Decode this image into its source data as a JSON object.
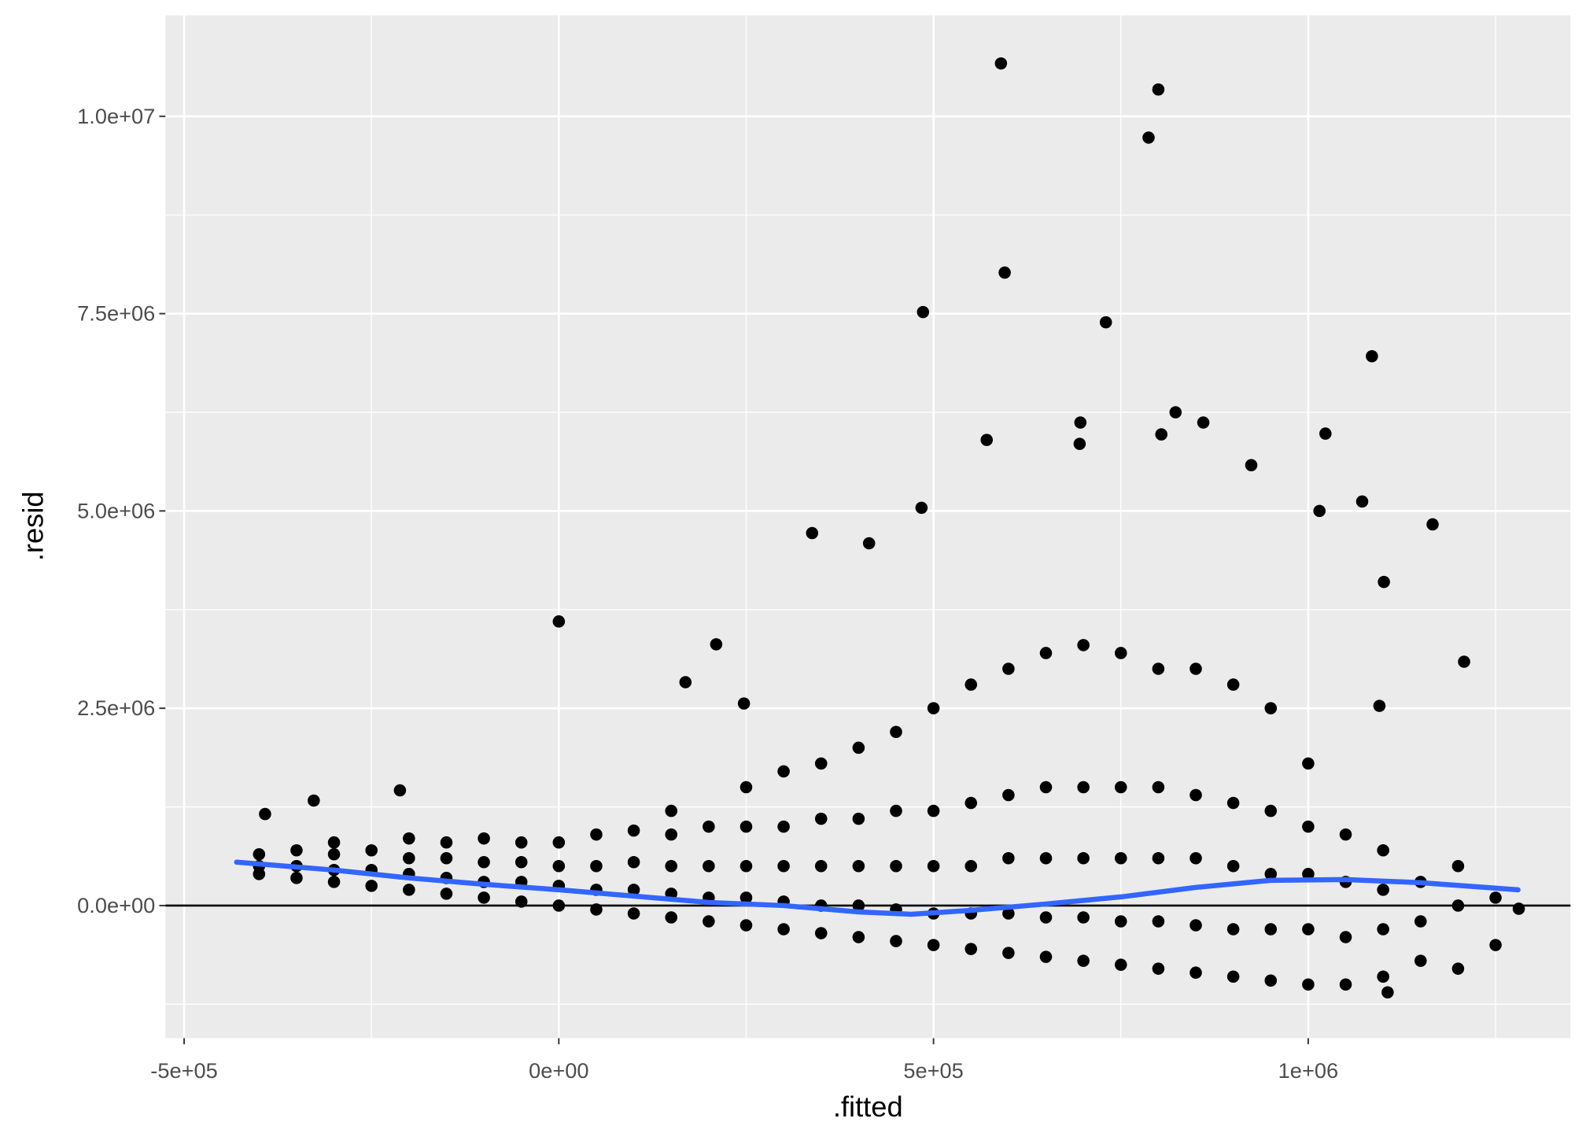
{
  "chart_data": {
    "type": "scatter",
    "xlabel": ".fitted",
    "ylabel": ".resid",
    "xlim": [
      -525000,
      1350000
    ],
    "ylim": [
      -1680000,
      11280000
    ],
    "xticks": [
      {
        "value": -500000,
        "label": "-5e+05"
      },
      {
        "value": 0,
        "label": "0e+00"
      },
      {
        "value": 500000,
        "label": "5e+05"
      },
      {
        "value": 1000000,
        "label": "1e+06"
      }
    ],
    "yticks": [
      {
        "value": 0,
        "label": "0.0e+00"
      },
      {
        "value": 2500000,
        "label": "2.5e+06"
      },
      {
        "value": 5000000,
        "label": "5.0e+06"
      },
      {
        "value": 7500000,
        "label": "7.5e+06"
      },
      {
        "value": 10000000,
        "label": "1.0e+07"
      }
    ],
    "xminorticks": [
      -250000,
      250000,
      750000,
      1250000
    ],
    "yminorticks": [
      -1250000,
      1250000,
      3750000,
      6250000,
      8750000
    ],
    "grid": true,
    "hline": 0,
    "color": "#000000",
    "x": [
      -400000,
      -400000,
      -400000,
      -350000,
      -350000,
      -350000,
      -300000,
      -300000,
      -300000,
      -300000,
      -250000,
      -250000,
      -250000,
      -200000,
      -200000,
      -200000,
      -200000,
      -150000,
      -150000,
      -150000,
      -150000,
      -100000,
      -100000,
      -100000,
      -100000,
      -50000,
      -50000,
      -50000,
      -50000,
      0,
      0,
      0,
      0,
      50000,
      50000,
      50000,
      50000,
      100000,
      100000,
      100000,
      100000,
      150000,
      150000,
      150000,
      150000,
      150000,
      200000,
      200000,
      200000,
      200000,
      250000,
      250000,
      250000,
      250000,
      250000,
      300000,
      300000,
      300000,
      300000,
      300000,
      350000,
      350000,
      350000,
      350000,
      350000,
      400000,
      400000,
      400000,
      400000,
      400000,
      450000,
      450000,
      450000,
      450000,
      450000,
      500000,
      500000,
      500000,
      500000,
      500000,
      550000,
      550000,
      550000,
      550000,
      550000,
      600000,
      600000,
      600000,
      600000,
      600000,
      650000,
      650000,
      650000,
      650000,
      650000,
      700000,
      700000,
      700000,
      700000,
      700000,
      750000,
      750000,
      750000,
      750000,
      750000,
      800000,
      800000,
      800000,
      800000,
      800000,
      850000,
      850000,
      850000,
      850000,
      850000,
      900000,
      900000,
      900000,
      900000,
      900000,
      950000,
      950000,
      950000,
      950000,
      950000,
      1000000,
      1000000,
      1000000,
      1000000,
      1000000,
      1050000,
      1050000,
      1050000,
      1050000,
      1100000,
      1100000,
      1100000,
      1100000,
      1150000,
      1150000,
      1150000,
      1200000,
      1200000,
      1200000,
      1250000,
      1250000,
      590000,
      800000,
      787000,
      595000,
      486000,
      730000,
      1085000,
      696000,
      823000,
      860000,
      571000,
      695000,
      804000,
      1023000,
      924000,
      484000,
      1015000,
      1072000,
      1166000,
      338000,
      414000,
      1101000,
      0,
      210000,
      1208000,
      169000,
      247000,
      1095000,
      1281000,
      1106000,
      -392000,
      -212000,
      -327000
    ],
    "values": [
      400000,
      500000,
      650000,
      350000,
      500000,
      700000,
      300000,
      450000,
      650000,
      800000,
      250000,
      450000,
      700000,
      200000,
      400000,
      600000,
      850000,
      150000,
      350000,
      600000,
      800000,
      100000,
      300000,
      550000,
      850000,
      50000,
      300000,
      550000,
      800000,
      0,
      250000,
      500000,
      800000,
      -50000,
      200000,
      500000,
      900000,
      -100000,
      200000,
      550000,
      950000,
      -150000,
      150000,
      500000,
      900000,
      1200000,
      -200000,
      100000,
      500000,
      1000000,
      -250000,
      100000,
      500000,
      1000000,
      1500000,
      -300000,
      50000,
      500000,
      1000000,
      1700000,
      -350000,
      0,
      500000,
      1100000,
      1800000,
      -400000,
      0,
      500000,
      1100000,
      2000000,
      -450000,
      -50000,
      500000,
      1200000,
      2200000,
      -500000,
      -100000,
      500000,
      1200000,
      2500000,
      -550000,
      -100000,
      500000,
      1300000,
      2800000,
      -600000,
      -100000,
      600000,
      1400000,
      3000000,
      -650000,
      -150000,
      600000,
      1500000,
      3200000,
      -700000,
      -150000,
      600000,
      1500000,
      3300000,
      -750000,
      -200000,
      600000,
      1500000,
      3200000,
      -800000,
      -200000,
      600000,
      1500000,
      3000000,
      -850000,
      -250000,
      600000,
      1400000,
      3000000,
      -900000,
      -300000,
      500000,
      1300000,
      2800000,
      -950000,
      -300000,
      400000,
      1200000,
      2500000,
      -1000000,
      -300000,
      400000,
      1000000,
      1800000,
      -1000000,
      -400000,
      300000,
      900000,
      -900000,
      -300000,
      200000,
      700000,
      -700000,
      -200000,
      300000,
      -800000,
      0,
      500000,
      -500000,
      100000,
      10670000,
      10340000,
      9730000,
      8020000,
      7520000,
      7390000,
      6960000,
      6120000,
      6250000,
      6120000,
      5900000,
      5850000,
      5970000,
      5980000,
      5580000,
      5040000,
      5000000,
      5120000,
      4830000,
      4720000,
      4590000,
      4100000,
      3600000,
      3310000,
      3090000,
      2830000,
      2560000,
      2530000,
      -40000,
      -1100000,
      1160000,
      1460000,
      1330000
    ],
    "smooth": {
      "color": "#3366ff",
      "x": [
        -430000,
        -300000,
        -200000,
        -100000,
        0,
        100000,
        200000,
        300000,
        400000,
        470000,
        550000,
        650000,
        750000,
        850000,
        950000,
        1050000,
        1150000,
        1280000
      ],
      "values": [
        550000,
        450000,
        350000,
        270000,
        200000,
        120000,
        40000,
        0,
        -80000,
        -110000,
        -60000,
        20000,
        110000,
        230000,
        320000,
        330000,
        290000,
        200000
      ]
    }
  }
}
